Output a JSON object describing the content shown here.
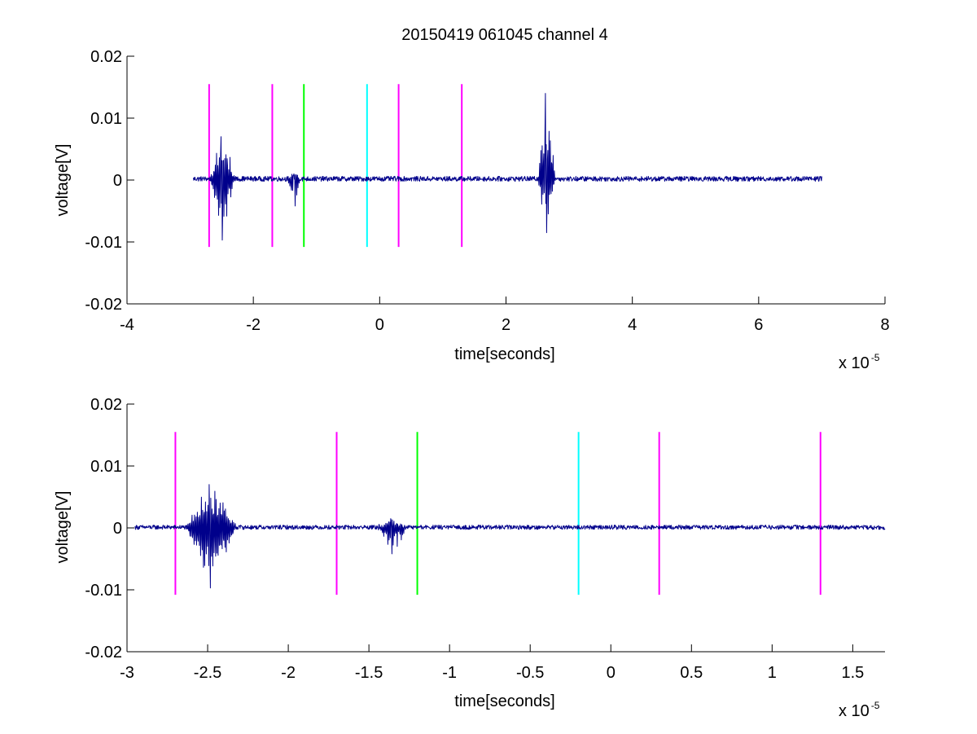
{
  "figure": {
    "title": "20150419 061045 channel 4",
    "background": "#ffffff"
  },
  "colors": {
    "signal": "#00008b",
    "magenta": "#ff00ff",
    "green": "#00ff00",
    "cyan": "#00ffff",
    "axes": "#000000"
  },
  "chart_data": [
    {
      "type": "line",
      "xlabel": "time[seconds]",
      "ylabel": "voltage[V]",
      "x_multiplier_label": "x 10",
      "x_multiplier_exponent": "-5",
      "xlim": [
        -4,
        8
      ],
      "ylim": [
        -0.02,
        0.02
      ],
      "xticks": [
        -4,
        -2,
        0,
        2,
        4,
        6,
        8
      ],
      "xtick_labels": [
        "-4",
        "-2",
        "0",
        "2",
        "4",
        "6",
        "8"
      ],
      "yticks": [
        -0.02,
        -0.01,
        0,
        0.01,
        0.02
      ],
      "ytick_labels": [
        "-0.02",
        "-0.01",
        "0",
        "0.01",
        "0.02"
      ],
      "grid": false,
      "series": [
        {
          "color": "#00008b",
          "x_range": [
            -2.95,
            7.0
          ],
          "baseline": 0.0002,
          "noise_amplitude": 0.0004,
          "events": [
            {
              "start": -2.68,
              "end": -2.3,
              "min": -0.0097,
              "max": 0.007
            },
            {
              "start": -1.45,
              "end": -1.25,
              "min": -0.0042,
              "max": 0.001
            },
            {
              "start": 2.5,
              "end": 2.78,
              "min": -0.0085,
              "max": 0.014
            }
          ]
        }
      ],
      "markers": [
        {
          "x": -2.7,
          "color": "#ff00ff",
          "y_range": [
            -0.0108,
            0.0155
          ]
        },
        {
          "x": -1.7,
          "color": "#ff00ff",
          "y_range": [
            -0.0108,
            0.0155
          ]
        },
        {
          "x": -1.2,
          "color": "#00ff00",
          "y_range": [
            -0.0108,
            0.0155
          ]
        },
        {
          "x": -0.2,
          "color": "#00ffff",
          "y_range": [
            -0.0108,
            0.0155
          ]
        },
        {
          "x": 0.3,
          "color": "#ff00ff",
          "y_range": [
            -0.0108,
            0.0155
          ]
        },
        {
          "x": 1.3,
          "color": "#ff00ff",
          "y_range": [
            -0.0108,
            0.0155
          ]
        }
      ]
    },
    {
      "type": "line",
      "xlabel": "time[seconds]",
      "ylabel": "voltage[V]",
      "x_multiplier_label": "x 10",
      "x_multiplier_exponent": "-5",
      "xlim": [
        -3.0,
        1.7
      ],
      "ylim": [
        -0.02,
        0.02
      ],
      "xticks": [
        -3,
        -2.5,
        -2,
        -1.5,
        -1,
        -0.5,
        0,
        0.5,
        1,
        1.5
      ],
      "xtick_labels": [
        "-3",
        "-2.5",
        "-2",
        "-1.5",
        "-1",
        "-0.5",
        "0",
        "0.5",
        "1",
        "1.5"
      ],
      "yticks": [
        -0.02,
        -0.01,
        0,
        0.01,
        0.02
      ],
      "ytick_labels": [
        "-0.02",
        "-0.01",
        "0",
        "0.01",
        "0.02"
      ],
      "grid": false,
      "series": [
        {
          "color": "#00008b",
          "x_range": [
            -2.95,
            1.7
          ],
          "baseline": 0.0001,
          "noise_amplitude": 0.00035,
          "events": [
            {
              "start": -2.63,
              "end": -2.32,
              "min": -0.0097,
              "max": 0.007
            },
            {
              "start": -1.45,
              "end": -1.26,
              "min": -0.0042,
              "max": 0.0015
            }
          ]
        }
      ],
      "markers": [
        {
          "x": -2.7,
          "color": "#ff00ff",
          "y_range": [
            -0.0108,
            0.0155
          ]
        },
        {
          "x": -1.7,
          "color": "#ff00ff",
          "y_range": [
            -0.0108,
            0.0155
          ]
        },
        {
          "x": -1.2,
          "color": "#00ff00",
          "y_range": [
            -0.0108,
            0.0155
          ]
        },
        {
          "x": -0.2,
          "color": "#00ffff",
          "y_range": [
            -0.0108,
            0.0155
          ]
        },
        {
          "x": 0.3,
          "color": "#ff00ff",
          "y_range": [
            -0.0108,
            0.0155
          ]
        },
        {
          "x": 1.3,
          "color": "#ff00ff",
          "y_range": [
            -0.0108,
            0.0155
          ]
        }
      ]
    }
  ]
}
